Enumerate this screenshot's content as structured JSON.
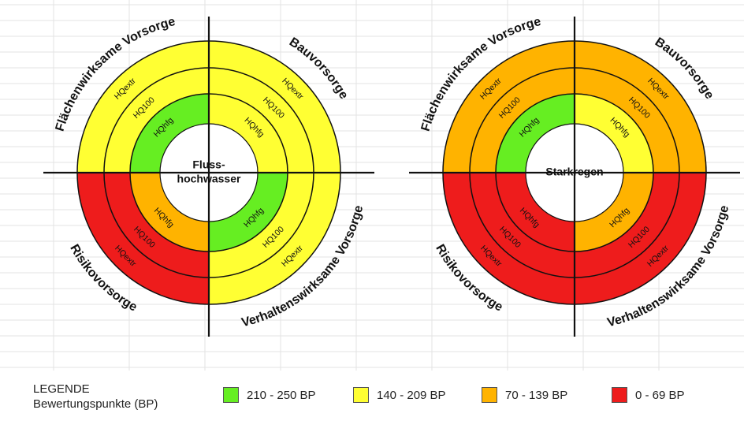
{
  "colors": {
    "green": "#66ee22",
    "yellow": "#ffff33",
    "orange": "#ffb300",
    "red": "#ee1c1c",
    "grid": "#e3e3e3",
    "line": "#111111"
  },
  "quadrant_titles": {
    "top_left": "Flächenwirksame Vorsorge",
    "top_right": "Bauvorsorge",
    "bottom_left": "Risikovorsorge",
    "bottom_right": "Verhaltenswirksame Vorsorge"
  },
  "ring_labels": [
    "HQhfg",
    "HQ100",
    "HQextr"
  ],
  "diagrams": [
    {
      "center_label": [
        "Fluss-",
        "hochwasser"
      ],
      "quadrants": {
        "top_left": [
          "green",
          "yellow",
          "yellow"
        ],
        "top_right": [
          "yellow",
          "yellow",
          "yellow"
        ],
        "bottom_left": [
          "orange",
          "red",
          "red"
        ],
        "bottom_right": [
          "green",
          "yellow",
          "yellow"
        ]
      }
    },
    {
      "center_label": [
        "Starkregen"
      ],
      "quadrants": {
        "top_left": [
          "green",
          "orange",
          "orange"
        ],
        "top_right": [
          "yellow",
          "orange",
          "orange"
        ],
        "bottom_left": [
          "red",
          "red",
          "red"
        ],
        "bottom_right": [
          "orange",
          "red",
          "red"
        ]
      }
    }
  ],
  "legend": {
    "title": "LEGENDE",
    "subtitle": "Bewertungspunkte  (BP)",
    "items": [
      {
        "color": "green",
        "label": "210 - 250 BP"
      },
      {
        "color": "yellow",
        "label": "140 - 209 BP"
      },
      {
        "color": "orange",
        "label": "70 - 139 BP"
      },
      {
        "color": "red",
        "label": "0 - 69 BP"
      }
    ]
  }
}
